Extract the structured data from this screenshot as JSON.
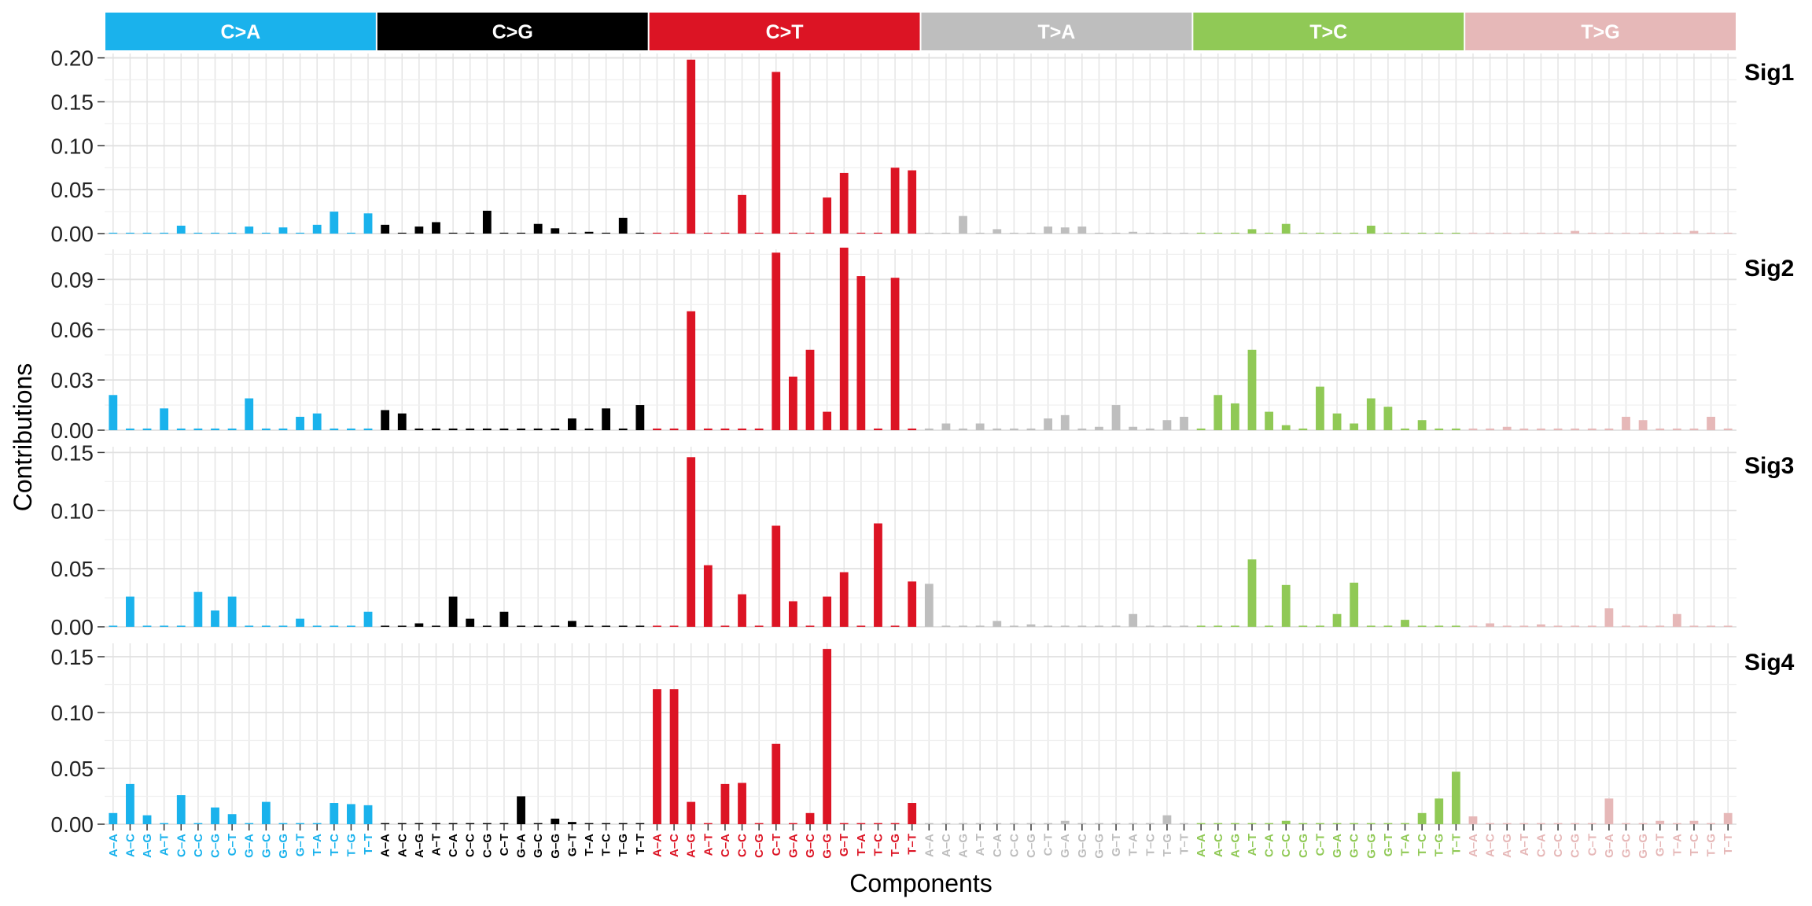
{
  "chart_data": {
    "type": "bar",
    "xlabel": "Components",
    "ylabel": "Contributions",
    "grid": true,
    "groups": [
      {
        "name": "C>A",
        "color": "#1ab2ec"
      },
      {
        "name": "C>G",
        "color": "#000000"
      },
      {
        "name": "C>T",
        "color": "#dc1424"
      },
      {
        "name": "T>A",
        "color": "#bebebe"
      },
      {
        "name": "T>C",
        "color": "#90c956"
      },
      {
        "name": "T>G",
        "color": "#e6b8b8"
      }
    ],
    "categories": [
      "A–A",
      "A–C",
      "A–G",
      "A–T",
      "C–A",
      "C–C",
      "C–G",
      "C–T",
      "G–A",
      "G–C",
      "G–G",
      "G–T",
      "T–A",
      "T–C",
      "T–G",
      "T–T"
    ],
    "facets": [
      {
        "name": "Sig1",
        "ylim": [
          0,
          0.205
        ],
        "ticks": [
          0,
          0.05,
          0.1,
          0.15,
          0.2
        ],
        "tick_labels": [
          "0.00",
          "0.05",
          "0.10",
          "0.15",
          "0.20"
        ],
        "values": [
          [
            0.001,
            0.001,
            0.001,
            0.001,
            0.009,
            0.001,
            0.001,
            0.001,
            0.008,
            0.001,
            0.007,
            0.001,
            0.01,
            0.025,
            0.001,
            0.023
          ],
          [
            0.01,
            0.001,
            0.008,
            0.013,
            0.001,
            0.001,
            0.026,
            0.001,
            0.001,
            0.011,
            0.006,
            0.001,
            0.002,
            0.001,
            0.018,
            0.001
          ],
          [
            0.001,
            0.001,
            0.198,
            0.001,
            0.001,
            0.044,
            0.001,
            0.184,
            0.001,
            0.001,
            0.041,
            0.069,
            0.001,
            0.001,
            0.075,
            0.072
          ],
          [
            0.001,
            0.001,
            0.02,
            0.001,
            0.005,
            0.001,
            0.001,
            0.008,
            0.007,
            0.008,
            0.001,
            0.001,
            0.002,
            0.001,
            0.001,
            0.001
          ],
          [
            0.001,
            0.001,
            0.001,
            0.005,
            0.001,
            0.011,
            0.001,
            0.001,
            0.001,
            0.001,
            0.009,
            0.001,
            0.001,
            0.001,
            0.001,
            0.001
          ],
          [
            0.001,
            0.001,
            0.001,
            0.001,
            0.001,
            0.001,
            0.003,
            0.001,
            0.001,
            0.001,
            0.001,
            0.001,
            0.001,
            0.003,
            0.001,
            0.001
          ]
        ]
      },
      {
        "name": "Sig2",
        "ylim": [
          0,
          0.108
        ],
        "ticks": [
          0,
          0.03,
          0.06,
          0.09
        ],
        "tick_labels": [
          "0.00",
          "0.03",
          "0.06",
          "0.09"
        ],
        "values": [
          [
            0.021,
            0.001,
            0.001,
            0.013,
            0.001,
            0.001,
            0.001,
            0.001,
            0.019,
            0.001,
            0.001,
            0.008,
            0.01,
            0.001,
            0.001,
            0.001
          ],
          [
            0.012,
            0.01,
            0.001,
            0.001,
            0.001,
            0.001,
            0.001,
            0.001,
            0.001,
            0.001,
            0.001,
            0.007,
            0.001,
            0.013,
            0.001,
            0.015
          ],
          [
            0.001,
            0.001,
            0.071,
            0.001,
            0.001,
            0.001,
            0.001,
            0.106,
            0.032,
            0.048,
            0.011,
            0.109,
            0.092,
            0.001,
            0.091,
            0.001
          ],
          [
            0.001,
            0.004,
            0.001,
            0.004,
            0.001,
            0.001,
            0.001,
            0.007,
            0.009,
            0.001,
            0.002,
            0.015,
            0.002,
            0.001,
            0.006,
            0.008
          ],
          [
            0.001,
            0.021,
            0.016,
            0.048,
            0.011,
            0.003,
            0.001,
            0.026,
            0.01,
            0.004,
            0.019,
            0.014,
            0.001,
            0.006,
            0.001,
            0.001
          ],
          [
            0.001,
            0.001,
            0.002,
            0.001,
            0.001,
            0.001,
            0.001,
            0.001,
            0.001,
            0.008,
            0.006,
            0.001,
            0.001,
            0.001,
            0.008,
            0.001
          ]
        ]
      },
      {
        "name": "Sig3",
        "ylim": [
          0,
          0.155
        ],
        "ticks": [
          0,
          0.05,
          0.1,
          0.15
        ],
        "tick_labels": [
          "0.00",
          "0.05",
          "0.10",
          "0.15"
        ],
        "values": [
          [
            0.001,
            0.026,
            0.001,
            0.001,
            0.001,
            0.03,
            0.014,
            0.026,
            0.001,
            0.001,
            0.001,
            0.007,
            0.001,
            0.001,
            0.001,
            0.013
          ],
          [
            0.001,
            0.001,
            0.003,
            0.001,
            0.026,
            0.007,
            0.001,
            0.013,
            0.001,
            0.001,
            0.001,
            0.005,
            0.001,
            0.001,
            0.001,
            0.001
          ],
          [
            0.001,
            0.001,
            0.146,
            0.053,
            0.001,
            0.028,
            0.001,
            0.087,
            0.022,
            0.001,
            0.026,
            0.047,
            0.001,
            0.089,
            0.001,
            0.039
          ],
          [
            0.037,
            0.001,
            0.001,
            0.001,
            0.005,
            0.001,
            0.002,
            0.001,
            0.001,
            0.001,
            0.001,
            0.001,
            0.011,
            0.001,
            0.001,
            0.001
          ],
          [
            0.001,
            0.001,
            0.001,
            0.058,
            0.001,
            0.036,
            0.001,
            0.001,
            0.011,
            0.038,
            0.001,
            0.001,
            0.006,
            0.001,
            0.001,
            0.001
          ],
          [
            0.001,
            0.003,
            0.001,
            0.001,
            0.002,
            0.001,
            0.001,
            0.001,
            0.016,
            0.001,
            0.001,
            0.001,
            0.011,
            0.001,
            0.001,
            0.001
          ]
        ]
      },
      {
        "name": "Sig4",
        "ylim": [
          0,
          0.162
        ],
        "ticks": [
          0,
          0.05,
          0.1,
          0.15
        ],
        "tick_labels": [
          "0.00",
          "0.05",
          "0.10",
          "0.15"
        ],
        "values": [
          [
            0.01,
            0.036,
            0.008,
            0.001,
            0.026,
            0.001,
            0.015,
            0.009,
            0.001,
            0.02,
            0.001,
            0.001,
            0.001,
            0.019,
            0.018,
            0.017
          ],
          [
            0.001,
            0.001,
            0.001,
            0.001,
            0.001,
            0.001,
            0.001,
            0.001,
            0.025,
            0.001,
            0.005,
            0.002,
            0.001,
            0.001,
            0.001,
            0.001
          ],
          [
            0.121,
            0.121,
            0.02,
            0.001,
            0.036,
            0.037,
            0.001,
            0.072,
            0.001,
            0.01,
            0.157,
            0.001,
            0.001,
            0.001,
            0.001,
            0.019
          ],
          [
            0.001,
            0.001,
            0.001,
            0.001,
            0.001,
            0.001,
            0.001,
            0.001,
            0.003,
            0.001,
            0.001,
            0.001,
            0.001,
            0.001,
            0.008,
            0.001
          ],
          [
            0.001,
            0.001,
            0.001,
            0.001,
            0.001,
            0.003,
            0.001,
            0.001,
            0.001,
            0.001,
            0.001,
            0.001,
            0.001,
            0.01,
            0.023,
            0.047
          ],
          [
            0.007,
            0.001,
            0.001,
            0.001,
            0.001,
            0.001,
            0.001,
            0.001,
            0.023,
            0.001,
            0.001,
            0.003,
            0.001,
            0.003,
            0.001,
            0.01
          ]
        ]
      }
    ]
  }
}
